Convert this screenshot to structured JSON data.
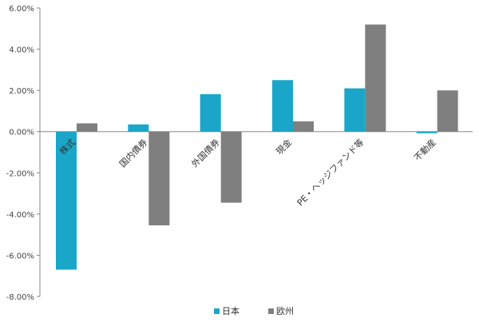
{
  "chart_data": {
    "type": "bar",
    "categories": [
      "株式",
      "国内債券",
      "外国債券",
      "現金",
      "PE・ヘッジファンド等",
      "不動産"
    ],
    "series": [
      {
        "name": "日本",
        "color": "#1aa6c8",
        "values": [
          -6.7,
          0.35,
          1.82,
          2.5,
          2.1,
          -0.08
        ]
      },
      {
        "name": "欧州",
        "color": "#7f7f7f",
        "values": [
          0.4,
          -4.55,
          -3.45,
          0.5,
          5.2,
          2.0
        ]
      }
    ],
    "ylim": [
      -8,
      6
    ],
    "yticks": [
      6,
      4,
      2,
      0,
      -2,
      -4,
      -6,
      -8
    ],
    "ytick_labels": [
      "6.00%",
      "4.00%",
      "2.00%",
      "0.00%",
      "-2.00%",
      "-4.00%",
      "-6.00%",
      "-8.00%"
    ],
    "grid": false,
    "legend": "bottom-center",
    "title": "",
    "xlabel": "",
    "ylabel": ""
  }
}
